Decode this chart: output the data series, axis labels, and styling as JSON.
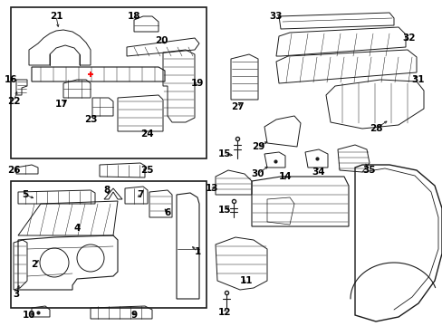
{
  "bg_color": "#ffffff",
  "line_color": "#1a1a1a",
  "fig_w": 4.89,
  "fig_h": 3.6,
  "dpi": 100,
  "label_fontsize": 7.5,
  "label_fontsize_small": 6.5
}
